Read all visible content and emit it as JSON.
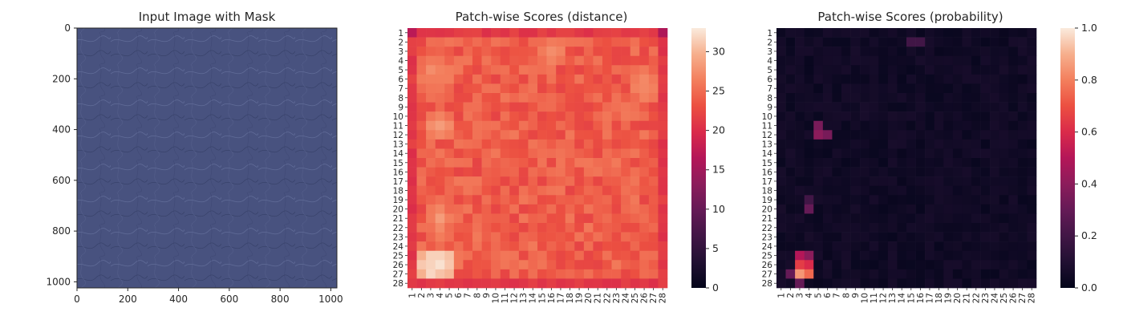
{
  "chart_data": [
    {
      "type": "image",
      "title": "Input Image with Mask",
      "xticks": [
        "0",
        "200",
        "400",
        "600",
        "800",
        "1000"
      ],
      "yticks": [
        "0",
        "200",
        "400",
        "600",
        "800",
        "1000"
      ],
      "xlim": [
        0,
        1024
      ],
      "ylim": [
        1024,
        0
      ],
      "image_description": "blue-grey leather texture",
      "base_color": "#48527f"
    },
    {
      "type": "heatmap",
      "title": "Patch-wise Scores (distance)",
      "rows": [
        "1",
        "2",
        "3",
        "4",
        "5",
        "6",
        "7",
        "8",
        "9",
        "10",
        "11",
        "12",
        "13",
        "14",
        "15",
        "16",
        "17",
        "18",
        "19",
        "20",
        "21",
        "22",
        "23",
        "24",
        "25",
        "26",
        "27",
        "28"
      ],
      "cols": [
        "1",
        "2",
        "3",
        "4",
        "5",
        "6",
        "7",
        "8",
        "9",
        "10",
        "11",
        "12",
        "13",
        "14",
        "15",
        "16",
        "17",
        "18",
        "19",
        "20",
        "21",
        "22",
        "23",
        "24",
        "25",
        "26",
        "27",
        "28"
      ],
      "colorbar": {
        "min": 0,
        "max": 33,
        "ticks": [
          "0",
          "5",
          "10",
          "15",
          "20",
          "25",
          "30"
        ]
      },
      "colormap": "rocket",
      "values_summary": {
        "border_mean": 21,
        "interior_mean": 24,
        "corner_top_left": 17,
        "corner_top_right": 16,
        "bright_regions": [
          {
            "rows": [
              25,
              27
            ],
            "cols": [
              2,
              5
            ],
            "peak": 33
          },
          {
            "rows": [
              3,
              8
            ],
            "cols": [
              2,
              5
            ],
            "peak": 28
          },
          {
            "rows": [
              10,
              12
            ],
            "cols": [
              3,
              5
            ],
            "peak": 28
          },
          {
            "rows": [
              19,
              23
            ],
            "cols": [
              3,
              5
            ],
            "peak": 28
          },
          {
            "rows": [
              2,
              4
            ],
            "cols": [
              15,
              17
            ],
            "peak": 28
          },
          {
            "rows": [
              5,
              8
            ],
            "cols": [
              25,
              27
            ],
            "peak": 28
          }
        ]
      }
    },
    {
      "type": "heatmap",
      "title": "Patch-wise Scores (probability)",
      "rows": [
        "1",
        "2",
        "3",
        "4",
        "5",
        "6",
        "7",
        "8",
        "9",
        "10",
        "11",
        "12",
        "13",
        "14",
        "15",
        "16",
        "17",
        "18",
        "19",
        "20",
        "21",
        "22",
        "23",
        "24",
        "25",
        "26",
        "27",
        "28"
      ],
      "cols": [
        "1",
        "2",
        "3",
        "4",
        "5",
        "6",
        "7",
        "8",
        "9",
        "10",
        "11",
        "12",
        "13",
        "14",
        "15",
        "16",
        "17",
        "18",
        "19",
        "20",
        "21",
        "22",
        "23",
        "24",
        "25",
        "26",
        "27",
        "28"
      ],
      "colorbar": {
        "min": 0.0,
        "max": 1.0,
        "ticks": [
          "0.0",
          "0.2",
          "0.4",
          "0.6",
          "0.8",
          "1.0"
        ]
      },
      "colormap": "rocket",
      "values_summary": {
        "background": 0.02,
        "hot_cells": [
          {
            "row": 25,
            "col": 3,
            "value": 0.5
          },
          {
            "row": 25,
            "col": 4,
            "value": 0.4
          },
          {
            "row": 26,
            "col": 3,
            "value": 0.65
          },
          {
            "row": 26,
            "col": 4,
            "value": 0.6
          },
          {
            "row": 27,
            "col": 3,
            "value": 0.85
          },
          {
            "row": 27,
            "col": 4,
            "value": 0.75
          },
          {
            "row": 27,
            "col": 2,
            "value": 0.3
          },
          {
            "row": 28,
            "col": 3,
            "value": 0.3
          },
          {
            "row": 11,
            "col": 5,
            "value": 0.35
          },
          {
            "row": 12,
            "col": 5,
            "value": 0.4
          },
          {
            "row": 12,
            "col": 6,
            "value": 0.35
          },
          {
            "row": 20,
            "col": 4,
            "value": 0.3
          },
          {
            "row": 19,
            "col": 4,
            "value": 0.2
          },
          {
            "row": 2,
            "col": 15,
            "value": 0.2
          },
          {
            "row": 2,
            "col": 16,
            "value": 0.2
          }
        ]
      }
    }
  ]
}
